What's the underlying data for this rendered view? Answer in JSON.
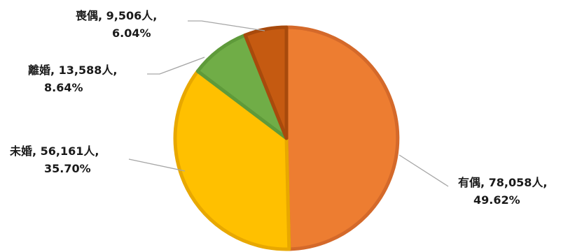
{
  "chart_data": {
    "type": "pie",
    "title": "",
    "categories": [
      "有偶",
      "未婚",
      "離婚",
      "喪偶"
    ],
    "values": [
      78058,
      56161,
      13588,
      9506
    ],
    "percents": [
      "49.62%",
      "35.70%",
      "8.64%",
      "6.04%"
    ],
    "labels": [
      {
        "name": "有偶",
        "value_text": "78,058",
        "unit": "人",
        "percent": "49.62%"
      },
      {
        "name": "未婚",
        "value_text": "56,161",
        "unit": "人",
        "percent": "35.70%"
      },
      {
        "name": "離婚",
        "value_text": "13,588",
        "unit": "人",
        "percent": "8.64%"
      },
      {
        "name": "喪偶",
        "value_text": "9,506",
        "unit": "人",
        "percent": "6.04%"
      }
    ],
    "colors": [
      "#ED7D31",
      "#FFC000",
      "#70AD47",
      "#C55A11"
    ],
    "border_colors": [
      "#D4692A",
      "#E8A800",
      "#5E9A3A",
      "#A84A0C"
    ],
    "start_angle": "12 o'clock, clockwise",
    "legend": "none"
  }
}
